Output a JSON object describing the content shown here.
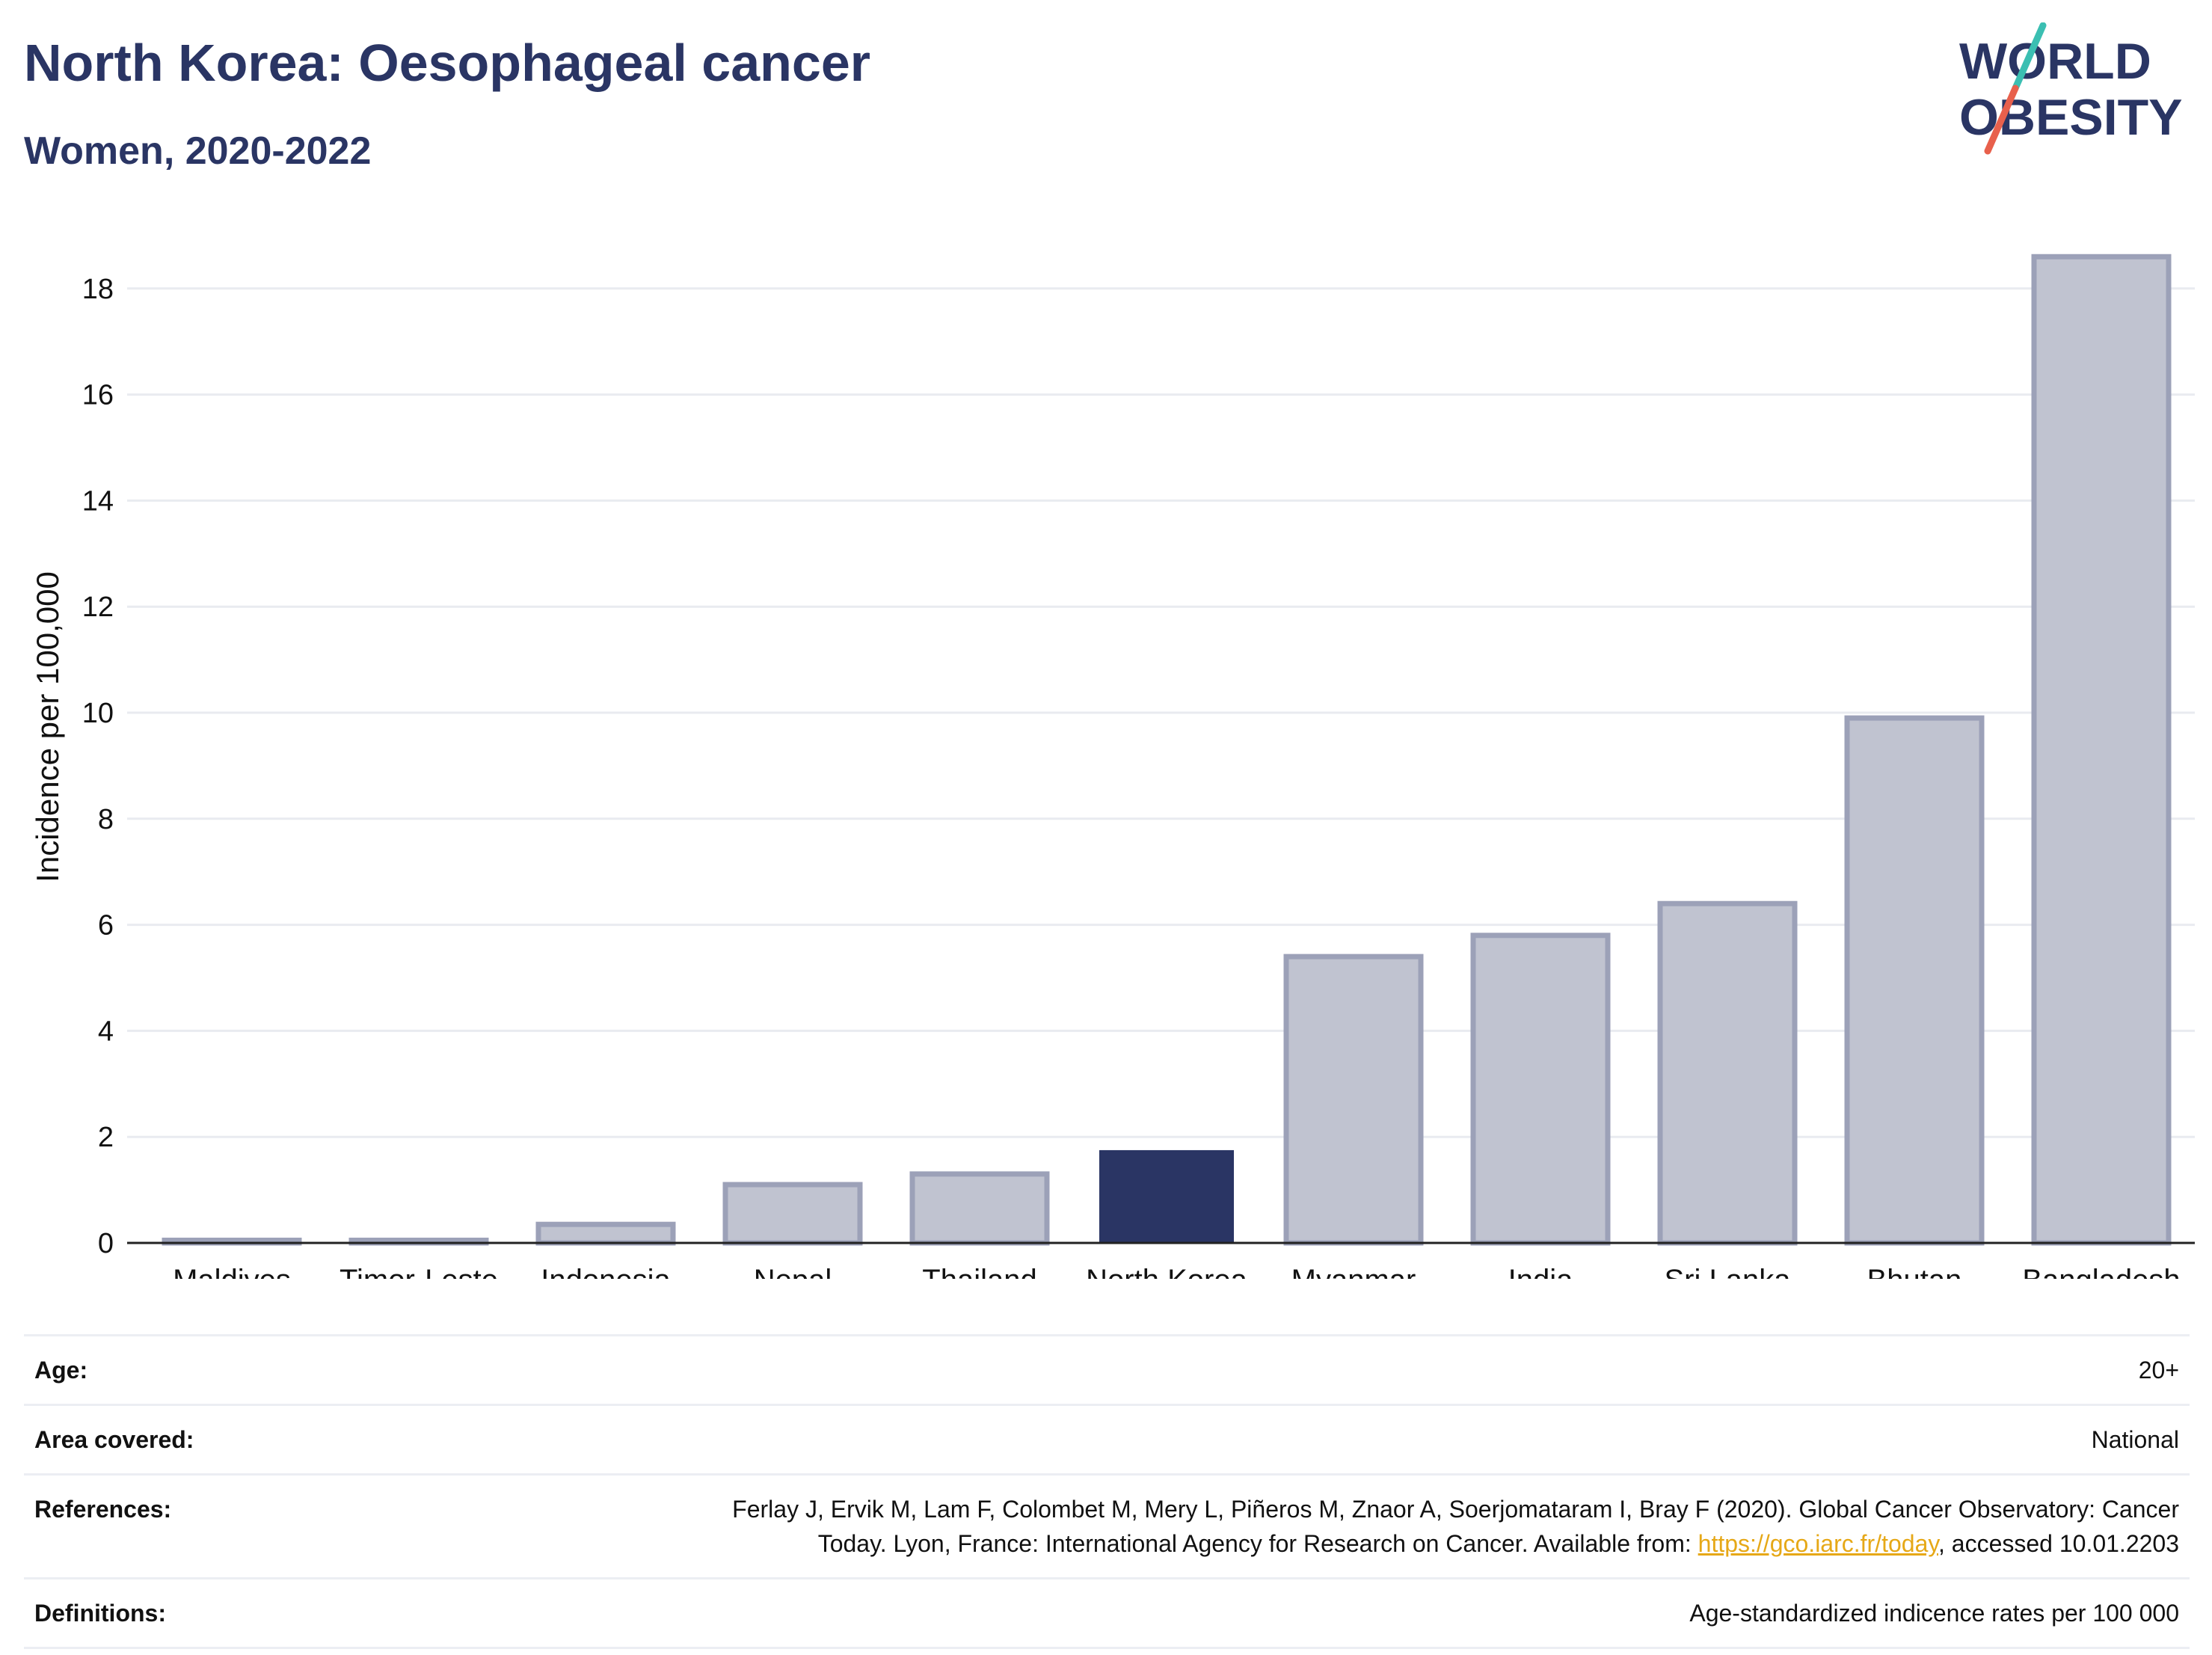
{
  "header": {
    "title": "North Korea: Oesophageal cancer",
    "subtitle": "Women, 2020-2022"
  },
  "logo": {
    "line1": "WORLD",
    "line2": "OBESITY",
    "text_color": "#2a3564",
    "slash_color_top": "#3bbfb2",
    "slash_color_bottom": "#e8604c"
  },
  "colors": {
    "highlight": "#2a3564",
    "bar_fill": "#c0c3d0",
    "bar_stroke": "#9ca1b8",
    "grid": "#e9ebf0",
    "axis": "#222222"
  },
  "chart_data": {
    "type": "bar",
    "ylabel": "Incidence per 100,000",
    "xlabel": "",
    "ylim": [
      0,
      19.6
    ],
    "yticks": [
      0,
      2,
      4,
      6,
      8,
      10,
      12,
      14,
      16,
      18
    ],
    "categories": [
      "Maldives",
      "Timor-Leste",
      "Indonesia",
      "Nepal",
      "Thailand",
      "North Korea",
      "Myanmar",
      "India",
      "Sri Lanka",
      "Bhutan",
      "Bangladesh"
    ],
    "values": [
      0.05,
      0.05,
      0.35,
      1.1,
      1.3,
      1.75,
      5.4,
      5.8,
      6.4,
      9.9,
      18.6
    ],
    "highlight": "North Korea",
    "grid": true
  },
  "meta": {
    "age_label": "Age:",
    "age_value": "20+",
    "area_label": "Area covered:",
    "area_value": "National",
    "refs_label": "References:",
    "refs_line1": "Ferlay J, Ervik M, Lam F, Colombet M, Mery L, Piñeros M, Znaor A, Soerjomataram I, Bray F (2020). Global Cancer Observatory: Cancer",
    "refs_line2_pre": "Today. Lyon, France: International Agency for Research on Cancer. Available from: ",
    "refs_link": "https://gco.iarc.fr/today",
    "refs_line2_post": ", accessed 10.01.2203",
    "defs_label": "Definitions:",
    "defs_value": "Age-standardized indicence rates per 100 000"
  }
}
